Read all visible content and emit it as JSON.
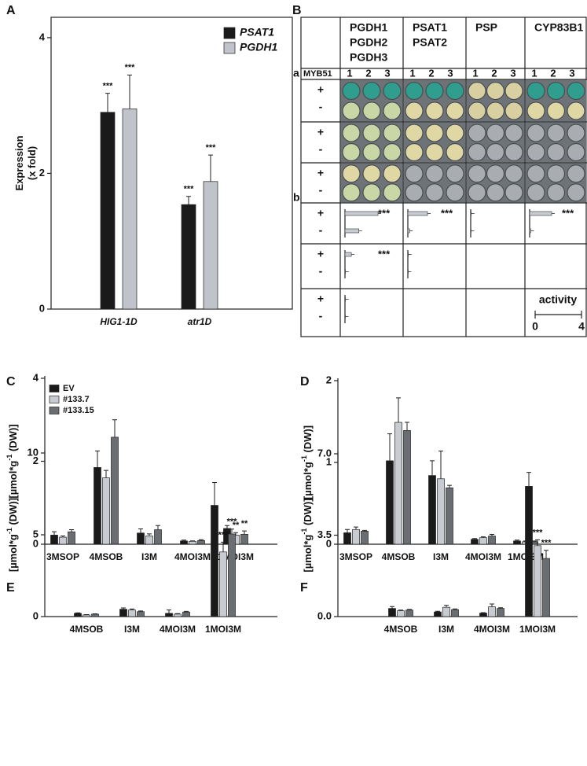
{
  "chart_data": [
    {
      "type": "bar",
      "panel": "A",
      "ylabel": [
        "Expression",
        "(x fold)"
      ],
      "categories": [
        "HIG1-1D",
        "atr1D"
      ],
      "series": [
        {
          "name": "PSAT1",
          "color": "#1a1a1a",
          "values": [
            2.9,
            1.54
          ],
          "errors": [
            0.28,
            0.12
          ]
        },
        {
          "name": "PGDH1",
          "color": "#c0c4ca",
          "values": [
            2.95,
            1.88
          ],
          "errors": [
            0.5,
            0.39
          ]
        }
      ],
      "annotations": [
        {
          "series": 0,
          "index": 0,
          "text": "***"
        },
        {
          "series": 1,
          "index": 0,
          "text": "***"
        },
        {
          "series": 0,
          "index": 1,
          "text": "***"
        },
        {
          "series": 1,
          "index": 1,
          "text": "***"
        }
      ],
      "ylim": [
        0,
        4.3
      ],
      "yticks": [
        0,
        2,
        4
      ]
    },
    {
      "type": "bar",
      "panel": "C",
      "ylabel": [
        "[µmol*g",
        "-1",
        " (DW)]"
      ],
      "categories": [
        "3MSOP",
        "4MSOB",
        "I3M",
        "4MOI3M",
        "1MOI3M"
      ],
      "series": [
        {
          "name": "EV",
          "color": "#1a1a1a",
          "values": [
            0.22,
            1.85,
            0.27,
            0.08,
            0.38
          ],
          "errors": [
            0.08,
            0.4,
            0.1,
            0.02,
            0.07
          ]
        },
        {
          "name": "#133.7",
          "color": "#c8ccd2",
          "values": [
            0.17,
            1.6,
            0.2,
            0.07,
            0.22
          ],
          "errors": [
            0.03,
            0.18,
            0.05,
            0.01,
            0.06
          ]
        },
        {
          "name": "#133.15",
          "color": "#6a6e72",
          "values": [
            0.3,
            2.58,
            0.35,
            0.09,
            0.24
          ],
          "errors": [
            0.05,
            0.42,
            0.1,
            0.02,
            0.08
          ]
        }
      ],
      "annotations": [
        {
          "series": 1,
          "index": 4,
          "text": "**"
        },
        {
          "series": 2,
          "index": 4,
          "text": "**"
        }
      ],
      "ylim": [
        0,
        4
      ],
      "yticks": [
        0,
        2,
        4
      ]
    },
    {
      "type": "bar",
      "panel": "D",
      "ylabel": [
        "[µmol*g",
        "-1",
        " (DW)]"
      ],
      "categories": [
        "3MSOP",
        "4MSOB",
        "I3M",
        "4MOI3M",
        "1MOI3M"
      ],
      "series": [
        {
          "name": "EV",
          "color": "#1a1a1a",
          "values": [
            0.14,
            1.02,
            0.84,
            0.06,
            0.04
          ],
          "errors": [
            0.04,
            0.33,
            0.18,
            0.01,
            0.01
          ]
        },
        {
          "name": "#133.7",
          "color": "#c8ccd2",
          "values": [
            0.18,
            1.49,
            0.8,
            0.08,
            0.03
          ],
          "errors": [
            0.03,
            0.3,
            0.34,
            0.01,
            0.01
          ]
        },
        {
          "name": "#133.15",
          "color": "#6a6e72",
          "values": [
            0.16,
            1.39,
            0.69,
            0.1,
            0.03
          ],
          "errors": [
            0.01,
            0.1,
            0.03,
            0.02,
            0.01
          ]
        }
      ],
      "ylim": [
        0,
        2
      ],
      "yticks": [
        0,
        1,
        2
      ]
    },
    {
      "type": "bar",
      "panel": "E",
      "ylabel": [
        "[µmol*g",
        "-1",
        " (DW)]"
      ],
      "categories": [
        "4MSOB",
        "I3M",
        "4MOI3M",
        "1MOI3M"
      ],
      "series": [
        {
          "name": "EV",
          "color": "#1a1a1a",
          "values": [
            0.2,
            0.45,
            0.2,
            6.8
          ],
          "errors": [
            0.03,
            0.08,
            0.2,
            1.4
          ]
        },
        {
          "name": "#133.7",
          "color": "#c8ccd2",
          "values": [
            0.1,
            0.4,
            0.15,
            3.95
          ],
          "errors": [
            0.02,
            0.06,
            0.03,
            0.6
          ]
        },
        {
          "name": "#133.15",
          "color": "#6a6e72",
          "values": [
            0.15,
            0.3,
            0.28,
            5.05
          ],
          "errors": [
            0.02,
            0.04,
            0.04,
            0.3
          ]
        }
      ],
      "annotations": [
        {
          "series": 1,
          "index": 3,
          "text": "***"
        },
        {
          "series": 2,
          "index": 3,
          "text": "***"
        }
      ],
      "ylim": [
        0,
        10
      ],
      "yticks": [
        0,
        5,
        10
      ]
    },
    {
      "type": "bar",
      "panel": "F",
      "ylabel": [
        "[µmol*g",
        "-1",
        " (DW)]"
      ],
      "categories": [
        "4MSOB",
        "I3M",
        "4MOI3M",
        "1MOI3M"
      ],
      "series": [
        {
          "name": "EV",
          "color": "#1a1a1a",
          "values": [
            0.35,
            0.2,
            0.15,
            5.6
          ],
          "errors": [
            0.08,
            0.03,
            0.02,
            0.6
          ]
        },
        {
          "name": "#133.7",
          "color": "#c8ccd2",
          "values": [
            0.25,
            0.4,
            0.42,
            3.05
          ],
          "errors": [
            0.03,
            0.08,
            0.12,
            0.25
          ]
        },
        {
          "name": "#133.15",
          "color": "#6a6e72",
          "values": [
            0.28,
            0.3,
            0.35,
            2.5
          ],
          "errors": [
            0.03,
            0.03,
            0.03,
            0.35
          ]
        }
      ],
      "annotations": [
        {
          "series": 1,
          "index": 3,
          "text": "***"
        },
        {
          "series": 2,
          "index": 3,
          "text": "***"
        }
      ],
      "ylim": [
        0,
        7
      ],
      "yticks": [
        {
          "value": 0,
          "label": "0.0"
        },
        3.5,
        {
          "value": 7,
          "label": "7.0"
        }
      ]
    }
  ],
  "panel_b": {
    "panel": "B",
    "columns": [
      [
        "PGDH1",
        "PGDH2",
        "PGDH3"
      ],
      [
        "PSAT1",
        "PSAT2"
      ],
      [
        "PSP"
      ],
      [
        "CYP83B1"
      ]
    ],
    "row_label_a": "a",
    "row_label_b": "b",
    "condition": "MYB51",
    "replicates": [
      "1",
      "2",
      "3"
    ],
    "signs": [
      "+",
      "-"
    ],
    "rows": [
      {
        "values": [
          [
            2.85,
            1.2
          ],
          [
            1.7,
            0.15
          ],
          [
            0.05,
            0.03
          ],
          [
            1.9,
            0.1
          ]
        ],
        "annotations": [
          "***",
          "***",
          null,
          "***"
        ]
      },
      {
        "values": [
          [
            0.55,
            0.05
          ],
          [
            0.05,
            0.03
          ],
          null,
          null
        ],
        "annotations": [
          "***",
          null,
          null,
          null
        ]
      },
      {
        "values": [
          [
            0.05,
            0.03
          ],
          null,
          null,
          null
        ],
        "annotations": [
          null,
          null,
          null,
          null
        ]
      }
    ],
    "activity": {
      "label": "activity",
      "xlim": [
        0,
        4
      ],
      "xticks": [
        0,
        4
      ]
    }
  }
}
